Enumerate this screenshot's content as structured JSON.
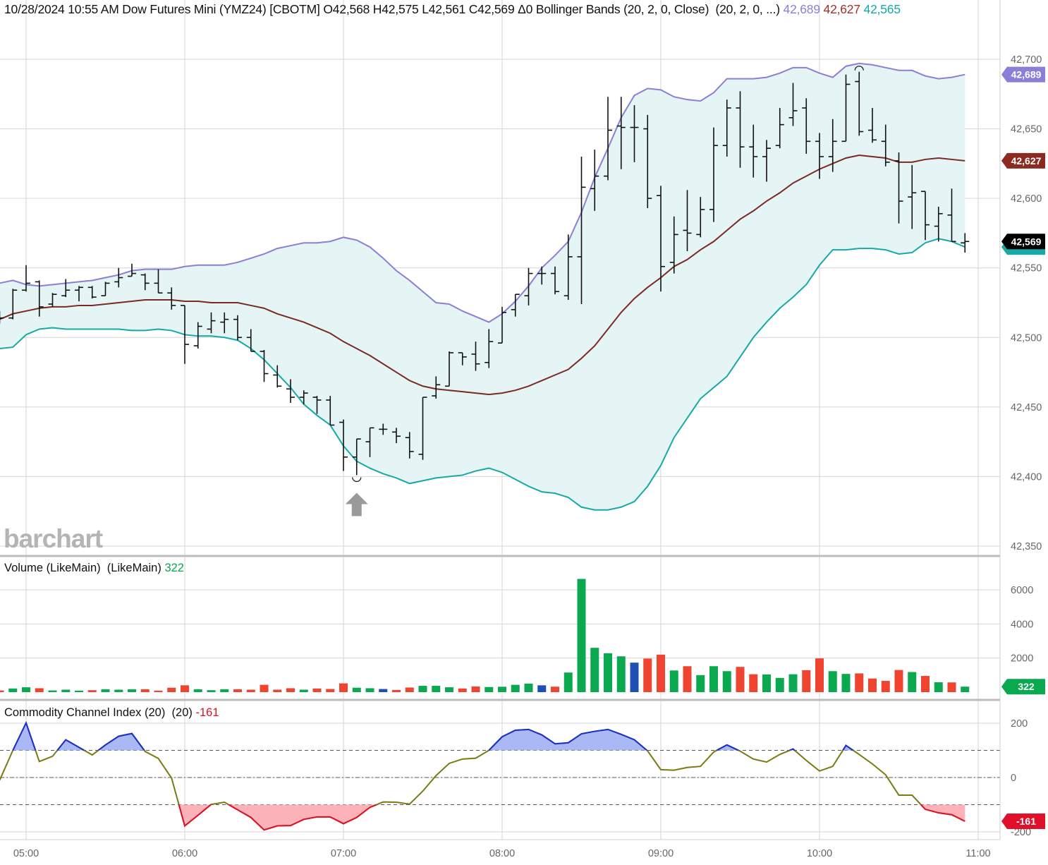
{
  "header": {
    "datetime": "10/28/2024 10:55 AM",
    "instrument": "Dow Futures Mini (YMZ24) [CBOTM]",
    "ohlc": "O42,568 H42,575 L42,561 C42,569 Δ0",
    "study": "Bollinger Bands (20, 2, 0, Close)  (20, 2, 0, ...)",
    "upper_value": "42,689",
    "middle_value": "42,627",
    "lower_value": "42,565"
  },
  "watermark": "barchart",
  "colors": {
    "upper_band": "#8a7fd6",
    "middle_band": "#7a2a24",
    "lower_band": "#17a8a8",
    "band_fill": "#e5f5f5",
    "price_bar": "#111111",
    "vol_up": "#0aa84f",
    "vol_down": "#ee4430",
    "vol_unchanged": "#1f4fb5",
    "cci_line": "#7a7a12",
    "cci_overbought": "#1a2fd0",
    "cci_oversold": "#e0102a",
    "cci_overbought_fill": "#aab8f5",
    "cci_oversold_fill": "#fbb2b8"
  },
  "chart_data": [
    {
      "type": "ohlc",
      "panel": "price",
      "x_ticks": [
        "05:00",
        "06:00",
        "07:00",
        "08:00",
        "09:00",
        "10:00",
        "11:00"
      ],
      "y_ticks": [
        "42,700",
        "42,650",
        "42,600",
        "42,550",
        "42,500",
        "42,450",
        "42,400",
        "42,350"
      ],
      "ylim": [
        42350,
        42700
      ],
      "grid": true,
      "x": [
        "04:50",
        "04:55",
        "05:00",
        "05:05",
        "05:10",
        "05:15",
        "05:20",
        "05:25",
        "05:30",
        "05:35",
        "05:40",
        "05:45",
        "05:50",
        "05:55",
        "06:00",
        "06:05",
        "06:10",
        "06:15",
        "06:20",
        "06:25",
        "06:30",
        "06:35",
        "06:40",
        "06:45",
        "06:50",
        "06:55",
        "07:00",
        "07:05",
        "07:10",
        "07:15",
        "07:20",
        "07:25",
        "07:30",
        "07:35",
        "07:40",
        "07:45",
        "07:50",
        "07:55",
        "08:00",
        "08:05",
        "08:10",
        "08:15",
        "08:20",
        "08:25",
        "08:30",
        "08:35",
        "08:40",
        "08:45",
        "08:50",
        "08:55",
        "09:00",
        "09:05",
        "09:10",
        "09:15",
        "09:20",
        "09:25",
        "09:30",
        "09:35",
        "09:40",
        "09:45",
        "09:50",
        "09:55",
        "10:00",
        "10:05",
        "10:10",
        "10:15",
        "10:20",
        "10:25",
        "10:30",
        "10:35",
        "10:40",
        "10:45",
        "10:50",
        "10:55"
      ],
      "ohlc": [
        [
          42512,
          42519,
          42510,
          42514
        ],
        [
          42514,
          42535,
          42513,
          42534
        ],
        [
          42534,
          42552,
          42533,
          42539
        ],
        [
          42540,
          42541,
          42515,
          42522
        ],
        [
          42524,
          42532,
          42522,
          42531
        ],
        [
          42530,
          42542,
          42529,
          42534
        ],
        [
          42534,
          42537,
          42526,
          42536
        ],
        [
          42536,
          42537,
          42528,
          42529
        ],
        [
          42530,
          42540,
          42530,
          42539
        ],
        [
          42540,
          42550,
          42536,
          42543
        ],
        [
          42544,
          42553,
          42544,
          42546
        ],
        [
          42545,
          42546,
          42534,
          42539
        ],
        [
          42539,
          42549,
          42532,
          42532
        ],
        [
          42532,
          42536,
          42520,
          42523
        ],
        [
          42523,
          42523,
          42481,
          42495
        ],
        [
          42494,
          42511,
          42492,
          42508
        ],
        [
          42506,
          42518,
          42503,
          42512
        ],
        [
          42511,
          42518,
          42503,
          42513
        ],
        [
          42513,
          42516,
          42498,
          42500
        ],
        [
          42500,
          42506,
          42490,
          42490
        ],
        [
          42490,
          42491,
          42468,
          42474
        ],
        [
          42473,
          42480,
          42464,
          42465
        ],
        [
          42463,
          42470,
          42453,
          42457
        ],
        [
          42457,
          42462,
          42452,
          42460
        ],
        [
          42457,
          42458,
          42445,
          42455
        ],
        [
          42455,
          42458,
          42437,
          42437
        ],
        [
          42439,
          42441,
          42404,
          42414
        ],
        [
          42414,
          42427,
          42401,
          42427
        ],
        [
          42425,
          42435,
          42414,
          42435
        ],
        [
          42434,
          42438,
          42430,
          42434
        ],
        [
          42432,
          42435,
          42424,
          42429
        ],
        [
          42428,
          42432,
          42413,
          42418
        ],
        [
          42416,
          42457,
          42412,
          42457
        ],
        [
          42458,
          42472,
          42456,
          42466
        ],
        [
          42465,
          42490,
          42465,
          42489
        ],
        [
          42489,
          42489,
          42480,
          42486
        ],
        [
          42488,
          42497,
          42476,
          42481
        ],
        [
          42482,
          42506,
          42478,
          42497
        ],
        [
          42496,
          42522,
          42496,
          42518
        ],
        [
          42520,
          42531,
          42515,
          42531
        ],
        [
          42530,
          42550,
          42523,
          42546
        ],
        [
          42546,
          42551,
          42538,
          42546
        ],
        [
          42546,
          42551,
          42531,
          42533
        ],
        [
          42530,
          42574,
          42527,
          42558
        ],
        [
          42558,
          42630,
          42524,
          42608
        ],
        [
          42607,
          42635,
          42591,
          42616
        ],
        [
          42616,
          42673,
          42613,
          42649
        ],
        [
          42652,
          42673,
          42621,
          42651
        ],
        [
          42651,
          42667,
          42626,
          42651
        ],
        [
          42650,
          42660,
          42593,
          42600
        ],
        [
          42602,
          42609,
          42533,
          42551
        ],
        [
          42554,
          42587,
          42546,
          42574
        ],
        [
          42577,
          42606,
          42562,
          42575
        ],
        [
          42574,
          42601,
          42572,
          42592
        ],
        [
          42592,
          42651,
          42583,
          42638
        ],
        [
          42638,
          42671,
          42630,
          42665
        ],
        [
          42665,
          42677,
          42622,
          42637
        ],
        [
          42637,
          42653,
          42615,
          42630
        ],
        [
          42630,
          42642,
          42612,
          42636
        ],
        [
          42638,
          42665,
          42636,
          42653
        ],
        [
          42658,
          42683,
          42652,
          42663
        ],
        [
          42665,
          42672,
          42632,
          42641
        ],
        [
          42641,
          42647,
          42614,
          42630
        ],
        [
          42630,
          42657,
          42619,
          42641
        ],
        [
          42641,
          42689,
          42641,
          42682
        ],
        [
          42684,
          42691,
          42645,
          42648
        ],
        [
          42649,
          42665,
          42640,
          42642
        ],
        [
          42641,
          42653,
          42623,
          42626
        ],
        [
          42627,
          42633,
          42582,
          42598
        ],
        [
          42601,
          42624,
          42578,
          42604
        ],
        [
          42605,
          42605,
          42570,
          42581
        ],
        [
          42580,
          42594,
          42569,
          42589
        ],
        [
          42588,
          42607,
          42569,
          42569
        ],
        [
          42568,
          42575,
          42561,
          42569
        ]
      ],
      "bollinger": {
        "upper": [
          42539,
          42541,
          42538,
          42537,
          42538,
          42539,
          42540,
          42541,
          42543,
          42545,
          42548,
          42549,
          42549,
          42549,
          42551,
          42552,
          42552,
          42552,
          42554,
          42557,
          42560,
          42564,
          42566,
          42568,
          42568,
          42569,
          42572,
          42570,
          42565,
          42557,
          42548,
          42541,
          42533,
          42525,
          42524,
          42519,
          42515,
          42511,
          42517,
          42526,
          42537,
          42550,
          42559,
          42569,
          42590,
          42615,
          42636,
          42658,
          42674,
          42679,
          42678,
          42673,
          42671,
          42670,
          42676,
          42686,
          42686,
          42686,
          42687,
          42690,
          42694,
          42694,
          42690,
          42687,
          42695,
          42697,
          42696,
          42694,
          42692,
          42692,
          42688,
          42686,
          42687,
          42689
        ],
        "middle": [
          42513,
          42517,
          42519,
          42521,
          42522,
          42522,
          42523,
          42523,
          42524,
          42525,
          42526,
          42527,
          42527,
          42527,
          42526,
          42526,
          42525,
          42525,
          42525,
          42523,
          42521,
          42517,
          42514,
          42511,
          42507,
          42503,
          42497,
          42492,
          42487,
          42481,
          42475,
          42469,
          42465,
          42463,
          42462,
          42461,
          42460,
          42459,
          42460,
          42462,
          42465,
          42469,
          42473,
          42477,
          42485,
          42494,
          42506,
          42518,
          42528,
          42536,
          42543,
          42551,
          42556,
          42563,
          42569,
          42577,
          42585,
          42591,
          42598,
          42604,
          42611,
          42616,
          42621,
          42625,
          42629,
          42631,
          42630,
          42629,
          42626,
          42626,
          42628,
          42629,
          42628,
          42627
        ],
        "lower": [
          42492,
          42493,
          42502,
          42506,
          42507,
          42506,
          42506,
          42506,
          42506,
          42506,
          42505,
          42505,
          42506,
          42505,
          42502,
          42501,
          42501,
          42500,
          42498,
          42492,
          42484,
          42474,
          42464,
          42452,
          42444,
          42437,
          42422,
          42411,
          42406,
          42402,
          42399,
          42395,
          42397,
          42399,
          42400,
          42401,
          42404,
          42406,
          42403,
          42398,
          42393,
          42389,
          42388,
          42385,
          42378,
          42376,
          42376,
          42378,
          42382,
          42393,
          42408,
          42428,
          42442,
          42456,
          42464,
          42472,
          42486,
          42500,
          42511,
          42521,
          42529,
          42538,
          42552,
          42563,
          42563,
          42564,
          42564,
          42563,
          42560,
          42561,
          42568,
          42571,
          42569,
          42565
        ]
      },
      "last_price": "42,569"
    },
    {
      "type": "bar",
      "panel": "volume",
      "title": "Volume (LikeMain)  (LikeMain)",
      "last_value": "322",
      "y_ticks": [
        "6000",
        "4000",
        "2000"
      ],
      "ylim": [
        0,
        6600
      ],
      "values": [
        100,
        215,
        285,
        230,
        100,
        145,
        90,
        115,
        170,
        145,
        170,
        170,
        90,
        260,
        400,
        170,
        115,
        170,
        170,
        145,
        430,
        145,
        230,
        145,
        215,
        185,
        515,
        260,
        230,
        185,
        130,
        270,
        370,
        370,
        285,
        215,
        330,
        300,
        315,
        430,
        500,
        400,
        320,
        1150,
        6640,
        2600,
        2280,
        2100,
        1730,
        1970,
        2200,
        1270,
        1520,
        1000,
        1520,
        1230,
        1480,
        1050,
        1040,
        830,
        1050,
        1290,
        1980,
        1230,
        1070,
        1100,
        800,
        660,
        1300,
        1180,
        950,
        580,
        570,
        322
      ],
      "direction": [
        "down",
        "up",
        "up",
        "down",
        "up",
        "up",
        "up",
        "down",
        "up",
        "up",
        "up",
        "down",
        "down",
        "down",
        "down",
        "up",
        "up",
        "up",
        "down",
        "down",
        "down",
        "down",
        "down",
        "up",
        "down",
        "down",
        "down",
        "up",
        "up",
        "unchanged",
        "down",
        "down",
        "up",
        "up",
        "up",
        "down",
        "down",
        "up",
        "up",
        "up",
        "up",
        "unchanged",
        "down",
        "up",
        "up",
        "up",
        "up",
        "up",
        "unchanged",
        "down",
        "down",
        "up",
        "down",
        "up",
        "up",
        "up",
        "down",
        "down",
        "up",
        "up",
        "up",
        "down",
        "down",
        "up",
        "up",
        "down",
        "down",
        "down",
        "down",
        "up",
        "down",
        "up",
        "down",
        "up"
      ]
    },
    {
      "type": "line",
      "panel": "cci",
      "title": "Commodity Channel Index (20)  (20)",
      "last_value": "-161",
      "y_ticks": [
        "200",
        "0",
        "-200"
      ],
      "ylim": [
        -200,
        200
      ],
      "levels": [
        100,
        0,
        -100
      ],
      "values": [
        -10,
        100,
        201,
        59,
        78,
        139,
        111,
        83,
        120,
        152,
        162,
        96,
        70,
        -2,
        -178,
        -139,
        -99,
        -91,
        -119,
        -147,
        -193,
        -178,
        -177,
        -154,
        -145,
        -145,
        -170,
        -147,
        -110,
        -90,
        -91,
        -98,
        -50,
        7,
        52,
        68,
        71,
        100,
        150,
        174,
        177,
        157,
        124,
        128,
        161,
        170,
        177,
        159,
        139,
        98,
        29,
        27,
        37,
        41,
        94,
        120,
        97,
        68,
        57,
        85,
        105,
        63,
        24,
        41,
        118,
        85,
        50,
        10,
        -65,
        -65,
        -117,
        -130,
        -137,
        -161
      ]
    }
  ]
}
